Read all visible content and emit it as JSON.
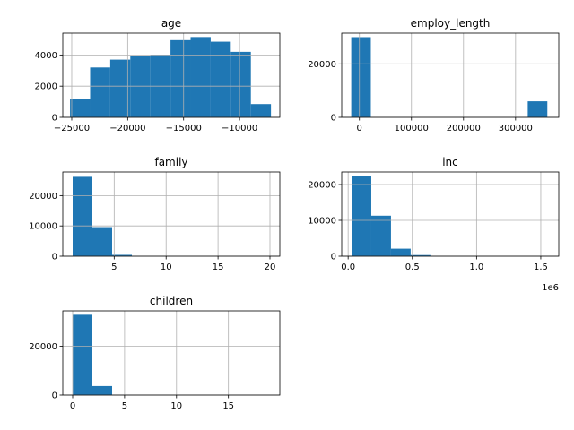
{
  "chart_data": [
    {
      "type": "bar",
      "title": "age",
      "xlim": [
        -25800,
        -6400
      ],
      "ylim": [
        0,
        5400
      ],
      "bin_edges": [
        -25152,
        -23356,
        -21560,
        -19764,
        -17968,
        -16172,
        -14376,
        -12580,
        -10784,
        -8988,
        -7192
      ],
      "values": [
        1200,
        3200,
        3700,
        3950,
        4020,
        4950,
        5150,
        4850,
        4200,
        850
      ],
      "xticks": [
        {
          "value": -25000,
          "label": "−25000"
        },
        {
          "value": -20000,
          "label": "−20000"
        },
        {
          "value": -15000,
          "label": "−15000"
        },
        {
          "value": -10000,
          "label": "−10000"
        }
      ],
      "yticks": [
        {
          "value": 0,
          "label": "0"
        },
        {
          "value": 2000,
          "label": "2000"
        },
        {
          "value": 4000,
          "label": "4000"
        }
      ],
      "grid": true,
      "exponent_label": ""
    },
    {
      "type": "bar",
      "title": "employ_length",
      "xlim": [
        -34000,
        383000
      ],
      "ylim": [
        0,
        31500
      ],
      "bin_edges": [
        -15713,
        21962,
        59637,
        97312,
        134987,
        172662,
        210337,
        248012,
        285687,
        323362,
        361037
      ],
      "values": [
        30000,
        0,
        0,
        0,
        0,
        0,
        0,
        0,
        0,
        6000
      ],
      "xticks": [
        {
          "value": 0,
          "label": "0"
        },
        {
          "value": 100000,
          "label": "100000"
        },
        {
          "value": 200000,
          "label": "200000"
        },
        {
          "value": 300000,
          "label": "300000"
        }
      ],
      "yticks": [
        {
          "value": 0,
          "label": "0"
        },
        {
          "value": 20000,
          "label": "20000"
        }
      ],
      "grid": true,
      "exponent_label": ""
    },
    {
      "type": "bar",
      "title": "family",
      "xlim": [
        0.05,
        20.95
      ],
      "ylim": [
        0,
        27800
      ],
      "bin_edges": [
        1,
        2.9,
        4.8,
        6.7,
        8.6,
        10.5,
        12.4,
        14.3,
        16.2,
        18.1,
        20
      ],
      "values": [
        26200,
        9600,
        450,
        0,
        0,
        0,
        0,
        0,
        0,
        0
      ],
      "xticks": [
        {
          "value": 5,
          "label": "5"
        },
        {
          "value": 10,
          "label": "10"
        },
        {
          "value": 15,
          "label": "15"
        },
        {
          "value": 20,
          "label": "20"
        }
      ],
      "yticks": [
        {
          "value": 0,
          "label": "0"
        },
        {
          "value": 10000,
          "label": "10000"
        },
        {
          "value": 20000,
          "label": "20000"
        }
      ],
      "grid": true,
      "exponent_label": ""
    },
    {
      "type": "bar",
      "title": "inc",
      "xlim": [
        -50000,
        1640000
      ],
      "ylim": [
        0,
        23500
      ],
      "bin_edges": [
        27000,
        180300,
        333600,
        486900,
        640200,
        793500,
        946800,
        1100100,
        1253400,
        1406700,
        1560000
      ],
      "values": [
        22400,
        11300,
        2100,
        320,
        40,
        10,
        0,
        0,
        0,
        0
      ],
      "xticks": [
        {
          "value": 0,
          "label": "0.0"
        },
        {
          "value": 500000,
          "label": "0.5"
        },
        {
          "value": 1000000,
          "label": "1.0"
        },
        {
          "value": 1500000,
          "label": "1.5"
        }
      ],
      "yticks": [
        {
          "value": 0,
          "label": "0"
        },
        {
          "value": 10000,
          "label": "10000"
        },
        {
          "value": 20000,
          "label": "20000"
        }
      ],
      "grid": true,
      "exponent_label": "1e6"
    },
    {
      "type": "bar",
      "title": "children",
      "xlim": [
        -0.95,
        19.95
      ],
      "ylim": [
        0,
        34500
      ],
      "bin_edges": [
        0,
        1.9,
        3.8,
        5.7,
        7.6,
        9.5,
        11.4,
        13.3,
        15.2,
        17.1,
        19
      ],
      "values": [
        32900,
        3700,
        40,
        0,
        0,
        0,
        0,
        0,
        0,
        0
      ],
      "xticks": [
        {
          "value": 0,
          "label": "0"
        },
        {
          "value": 5,
          "label": "5"
        },
        {
          "value": 10,
          "label": "10"
        },
        {
          "value": 15,
          "label": "15"
        }
      ],
      "yticks": [
        {
          "value": 0,
          "label": "0"
        },
        {
          "value": 20000,
          "label": "20000"
        }
      ],
      "grid": true,
      "exponent_label": ""
    }
  ],
  "colors": {
    "bar": "#1f77b4",
    "grid": "#b0b0b0",
    "axis": "#000000",
    "background": "#ffffff"
  }
}
